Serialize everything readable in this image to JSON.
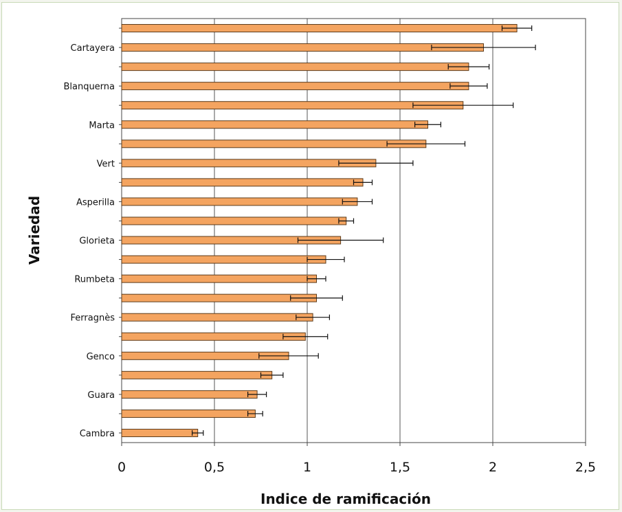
{
  "chart_data": {
    "type": "bar",
    "orientation": "horizontal",
    "xlabel": "Indice de ramificación",
    "ylabel": "Variedad",
    "xlim": [
      0,
      2.5
    ],
    "xticks": [
      "0",
      "0,5",
      "1",
      "1,5",
      "2",
      "2,5"
    ],
    "categories": [
      "",
      "Cartayera",
      "",
      "Blanquerna",
      "",
      "Marta",
      "",
      "Vert",
      "",
      "Asperilla",
      "",
      "Glorieta",
      "",
      "Rumbeta",
      "",
      "Ferragnès",
      "",
      "Genco",
      "",
      "Guara",
      "",
      "Cambra"
    ],
    "values": [
      2.13,
      1.95,
      1.87,
      1.87,
      1.84,
      1.65,
      1.64,
      1.37,
      1.3,
      1.27,
      1.21,
      1.18,
      1.1,
      1.05,
      1.05,
      1.03,
      0.99,
      0.9,
      0.81,
      0.73,
      0.72,
      0.41
    ],
    "errors": [
      0.08,
      0.28,
      0.11,
      0.1,
      0.27,
      0.07,
      0.21,
      0.2,
      0.05,
      0.08,
      0.04,
      0.23,
      0.1,
      0.05,
      0.14,
      0.09,
      0.12,
      0.16,
      0.06,
      0.05,
      0.04,
      0.03
    ],
    "bar_color": "#f4a460",
    "bar_stroke": "#5a3a1a",
    "grid": true,
    "legend": "none"
  }
}
